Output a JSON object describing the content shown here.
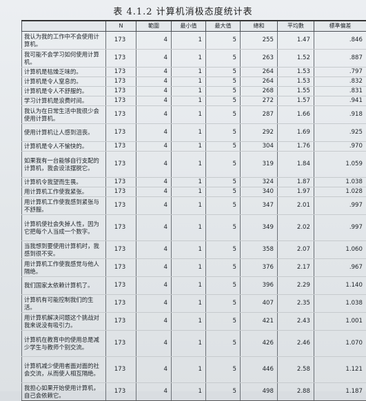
{
  "title": "表 4.1.2  计算机消极态度统计表",
  "headers": [
    "",
    "N",
    "範圍",
    "最小值",
    "最大值",
    "總和",
    "平均數",
    "標準偏差"
  ],
  "rows": [
    {
      "item": "我认为我的工作中不会使用计算机。",
      "n": "173",
      "range": "4",
      "min": "1",
      "max": "5",
      "sum": "255",
      "mean": "1.47",
      "sd": ".846"
    },
    {
      "item": "我可能不会学习如何使用计算机。",
      "n": "173",
      "range": "4",
      "min": "1",
      "max": "5",
      "sum": "263",
      "mean": "1.52",
      "sd": ".887"
    },
    {
      "item": "计算机是枯燥乏味的。",
      "n": "173",
      "range": "4",
      "min": "1",
      "max": "5",
      "sum": "264",
      "mean": "1.53",
      "sd": ".797"
    },
    {
      "item": "计算机是令人窒息的。",
      "n": "173",
      "range": "4",
      "min": "1",
      "max": "5",
      "sum": "264",
      "mean": "1.53",
      "sd": ".832"
    },
    {
      "item": "计算机是令人不舒服的。",
      "n": "173",
      "range": "4",
      "min": "1",
      "max": "5",
      "sum": "268",
      "mean": "1.55",
      "sd": ".831"
    },
    {
      "item": "学习计算机是浪费时间。",
      "n": "173",
      "range": "4",
      "min": "1",
      "max": "5",
      "sum": "272",
      "mean": "1.57",
      "sd": ".941"
    },
    {
      "item": "我认为在日常生活中我很少会使用计算机。",
      "n": "173",
      "range": "4",
      "min": "1",
      "max": "5",
      "sum": "287",
      "mean": "1.66",
      "sd": ".918"
    },
    {
      "item": "使用计算机让人感到沮丧。",
      "n": "173",
      "range": "4",
      "min": "1",
      "max": "5",
      "sum": "292",
      "mean": "1.69",
      "sd": ".925"
    },
    {
      "item": "计算机是令人不愉快的。",
      "n": "173",
      "range": "4",
      "min": "1",
      "max": "5",
      "sum": "304",
      "mean": "1.76",
      "sd": ".970"
    },
    {
      "item": "如果我有一台能够自行支配的计算机，我会设法摆脱它。",
      "n": "173",
      "range": "4",
      "min": "1",
      "max": "5",
      "sum": "319",
      "mean": "1.84",
      "sd": "1.059"
    },
    {
      "item": "计算机令我望而生畏。",
      "n": "173",
      "range": "4",
      "min": "1",
      "max": "5",
      "sum": "324",
      "mean": "1.87",
      "sd": "1.038"
    },
    {
      "item": "用计算机工作使我紧张。",
      "n": "173",
      "range": "4",
      "min": "1",
      "max": "5",
      "sum": "340",
      "mean": "1.97",
      "sd": "1.028"
    },
    {
      "item": "用计算机工作使我感到紧张与不舒服。",
      "n": "173",
      "range": "4",
      "min": "1",
      "max": "5",
      "sum": "347",
      "mean": "2.01",
      "sd": ".997"
    },
    {
      "item": "计算机使社会失掉人性，因为它把每个人当成一个数字。",
      "n": "173",
      "range": "4",
      "min": "1",
      "max": "5",
      "sum": "349",
      "mean": "2.02",
      "sd": ".997"
    },
    {
      "item": "当我想到要使用计算机时，我感到很不安。",
      "n": "173",
      "range": "4",
      "min": "1",
      "max": "5",
      "sum": "358",
      "mean": "2.07",
      "sd": "1.060"
    },
    {
      "item": "用计算机工作使我感觉与他人隔绝。",
      "n": "173",
      "range": "4",
      "min": "1",
      "max": "5",
      "sum": "376",
      "mean": "2.17",
      "sd": ".967"
    },
    {
      "item": "我们国家太依赖计算机了。",
      "n": "173",
      "range": "4",
      "min": "1",
      "max": "5",
      "sum": "396",
      "mean": "2.29",
      "sd": "1.140"
    },
    {
      "item": "计算机有可能控制我们的生活。",
      "n": "173",
      "range": "4",
      "min": "1",
      "max": "5",
      "sum": "407",
      "mean": "2.35",
      "sd": "1.038"
    },
    {
      "item": "用计算机解决问题这个挑战对我来说没有吸引力。",
      "n": "173",
      "range": "4",
      "min": "1",
      "max": "5",
      "sum": "421",
      "mean": "2.43",
      "sd": "1.001"
    },
    {
      "item": "计算机在教育中的使用总是减少学生与教师个别交流。",
      "n": "173",
      "range": "4",
      "min": "1",
      "max": "5",
      "sum": "426",
      "mean": "2.46",
      "sd": "1.070"
    },
    {
      "item": "计算机减少使用者面对面的社会交流，从而使人相互隔绝。",
      "n": "173",
      "range": "4",
      "min": "1",
      "max": "5",
      "sum": "446",
      "mean": "2.58",
      "sd": "1.121"
    },
    {
      "item": "我担心如果开始使用计算机，自己会依赖它。",
      "n": "173",
      "range": "4",
      "min": "1",
      "max": "5",
      "sum": "498",
      "mean": "2.88",
      "sd": "1.187"
    }
  ]
}
